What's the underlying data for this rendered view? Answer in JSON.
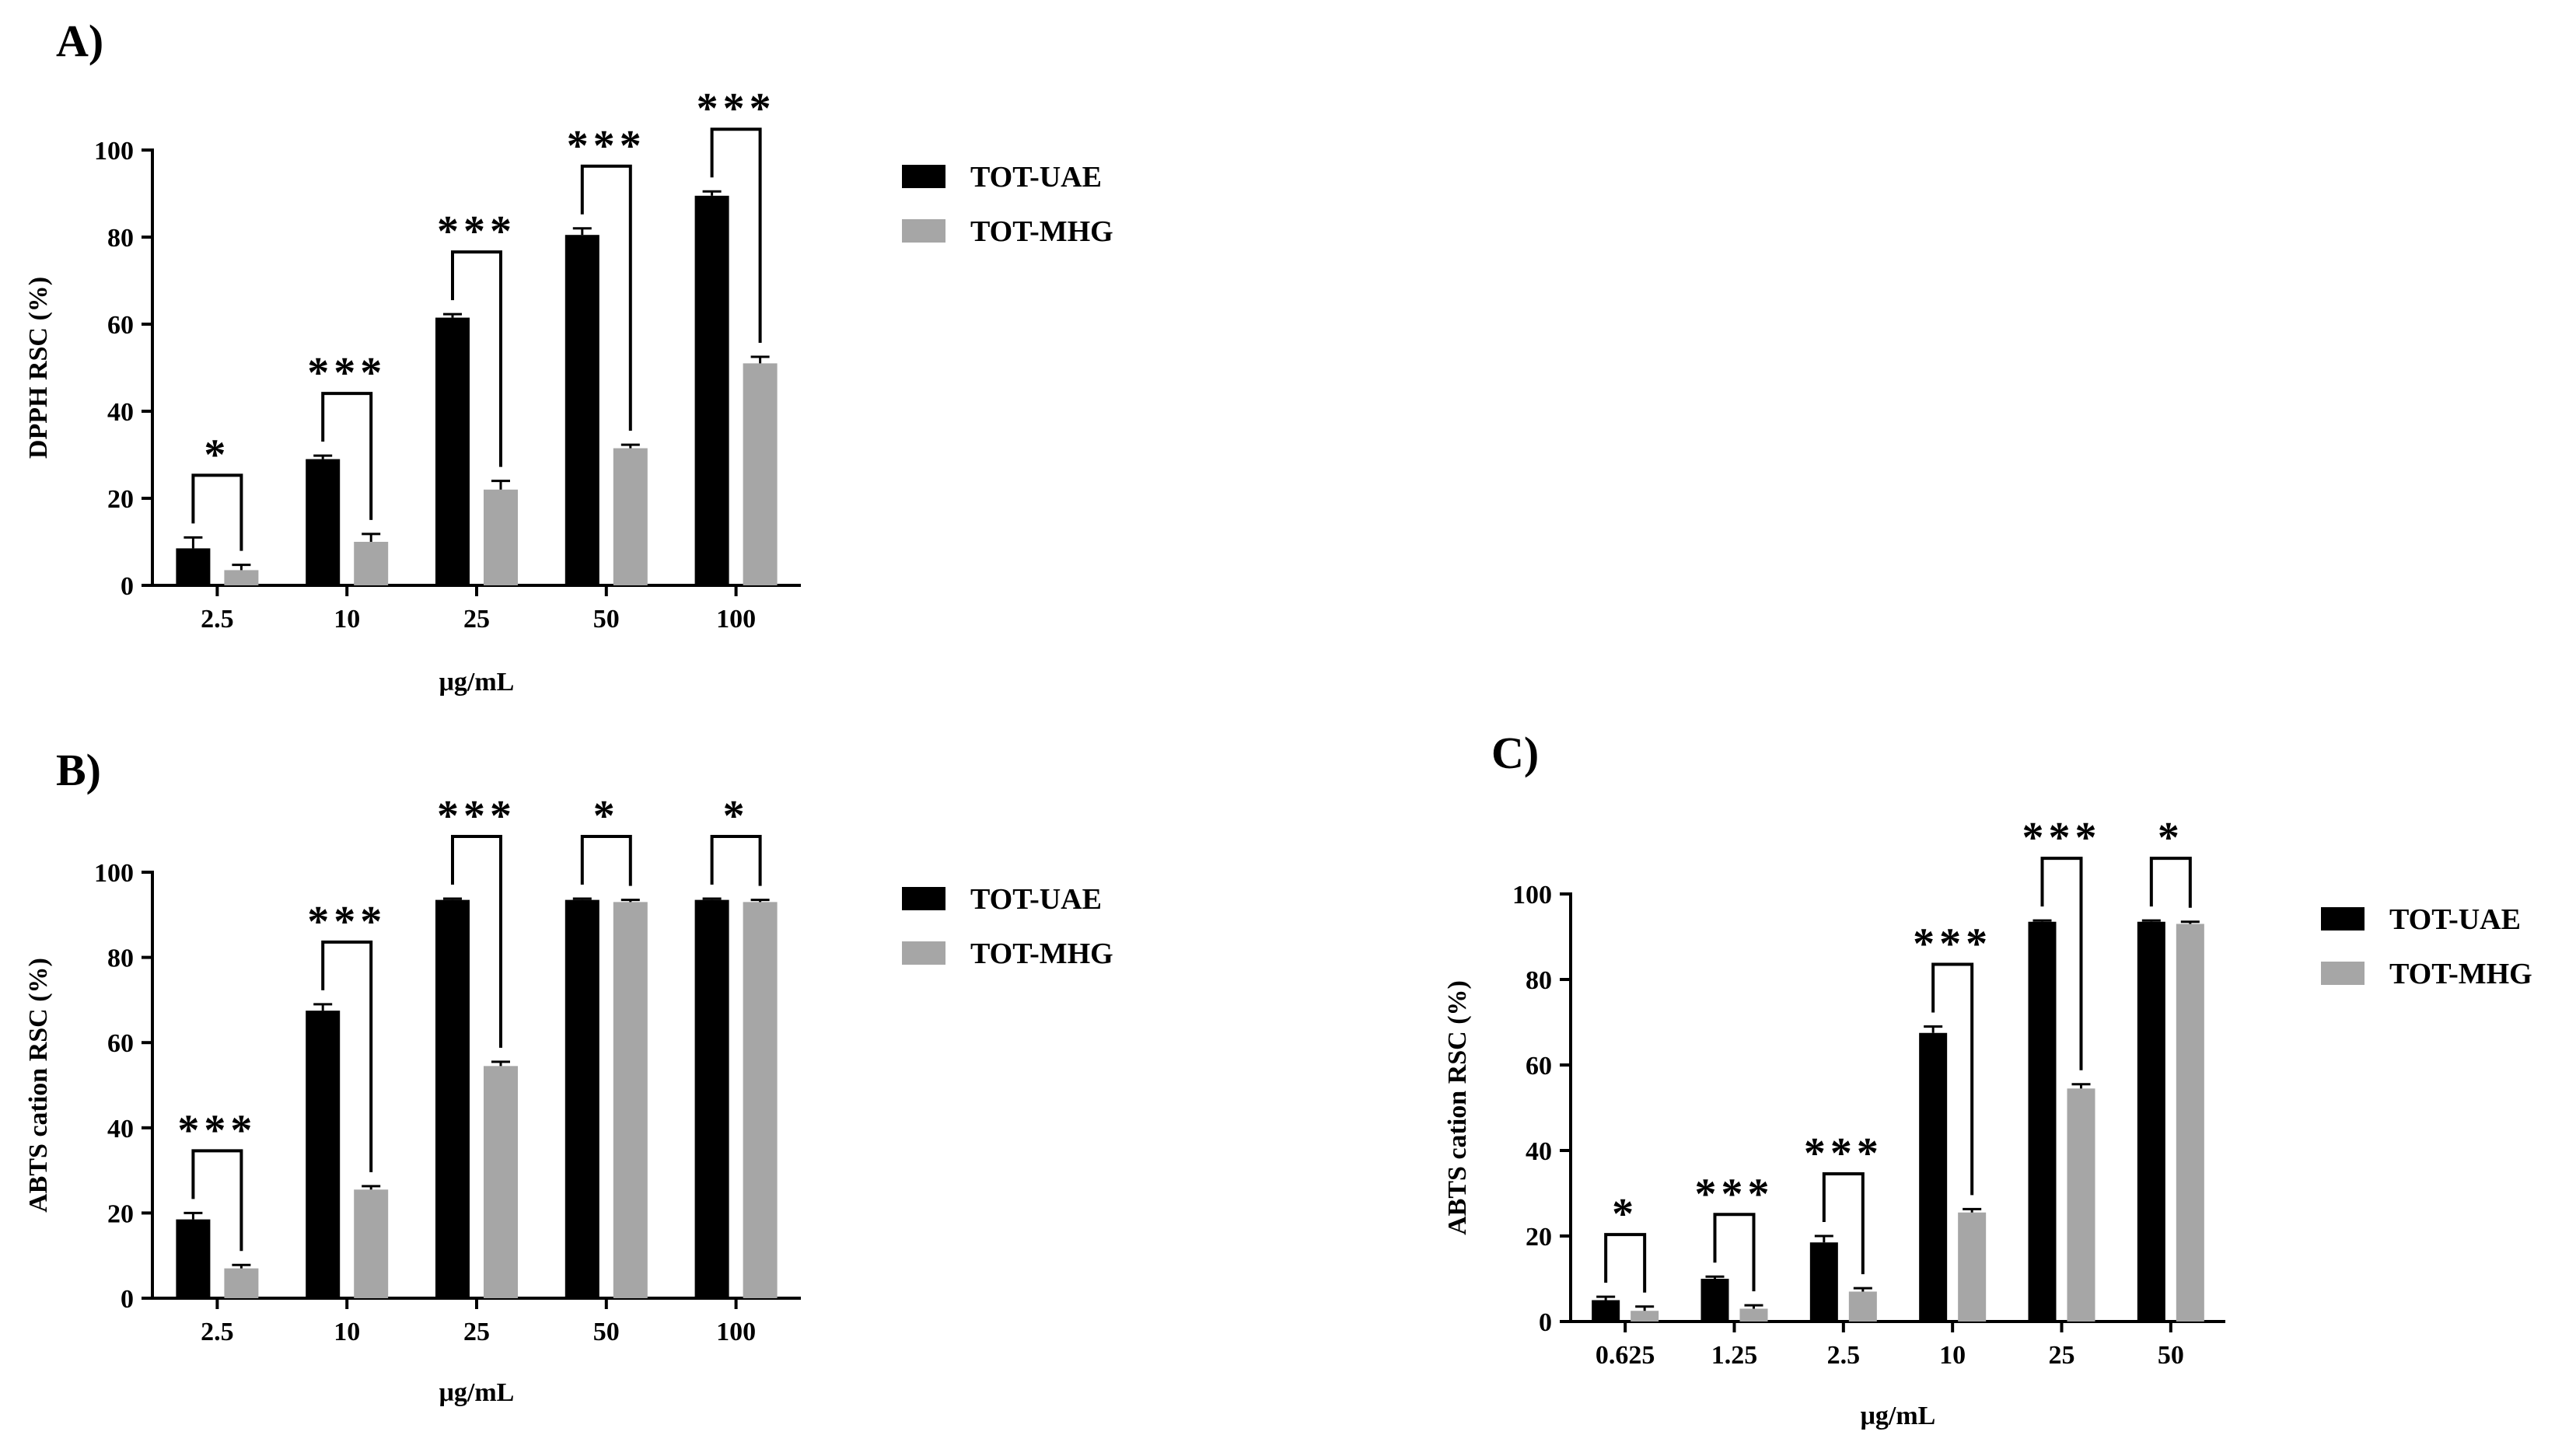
{
  "colors": {
    "series1": "#000000",
    "series2": "#a6a6a6",
    "axis": "#000000"
  },
  "chart_data": [
    {
      "panel_label": "A)",
      "type": "bar",
      "xlabel": "μg/mL",
      "ylabel": "DPPH RSC (%)",
      "ylim": [
        0,
        100
      ],
      "yticks": [
        "0",
        "20",
        "40",
        "60",
        "80",
        "100"
      ],
      "categories": [
        "2.5",
        "10",
        "25",
        "50",
        "100"
      ],
      "series": [
        {
          "name": "TOT-UAE",
          "values": [
            8.5,
            29,
            61.5,
            80.5,
            89.5
          ],
          "errors": [
            2.5,
            0.8,
            0.8,
            1.5,
            1.0
          ]
        },
        {
          "name": "TOT-MHG",
          "values": [
            3.5,
            10,
            22,
            31.5,
            51
          ],
          "errors": [
            1.2,
            1.8,
            2.0,
            0.8,
            1.5
          ]
        }
      ],
      "significance": [
        "*",
        "***",
        "***",
        "***",
        "***"
      ],
      "legend": "right"
    },
    {
      "panel_label": "B)",
      "type": "bar",
      "xlabel": "μg/mL",
      "ylabel": "ABTS cation RSC (%)",
      "ylim": [
        0,
        100
      ],
      "yticks": [
        "0",
        "20",
        "40",
        "60",
        "80",
        "100"
      ],
      "categories": [
        "2.5",
        "10",
        "25",
        "50",
        "100"
      ],
      "series": [
        {
          "name": "TOT-UAE",
          "values": [
            18.5,
            67.5,
            93.5,
            93.5,
            93.5
          ],
          "errors": [
            1.5,
            1.5,
            0.3,
            0.3,
            0.3
          ]
        },
        {
          "name": "TOT-MHG",
          "values": [
            7,
            25.5,
            54.5,
            93,
            93
          ],
          "errors": [
            0.8,
            0.8,
            1.0,
            0.5,
            0.5
          ]
        }
      ],
      "significance": [
        "***",
        "***",
        "***",
        "*",
        "*"
      ],
      "legend": "right"
    },
    {
      "panel_label": "C)",
      "type": "bar",
      "xlabel": "μg/mL",
      "ylabel": "ABTS cation RSC (%)",
      "ylim": [
        0,
        100
      ],
      "yticks": [
        "0",
        "20",
        "40",
        "60",
        "80",
        "100"
      ],
      "categories": [
        "0.625",
        "1.25",
        "2.5",
        "10",
        "25",
        "50"
      ],
      "series": [
        {
          "name": "TOT-UAE",
          "values": [
            5,
            10,
            18.5,
            67.5,
            93.5,
            93.5
          ],
          "errors": [
            0.8,
            0.5,
            1.5,
            1.5,
            0.3,
            0.3
          ]
        },
        {
          "name": "TOT-MHG",
          "values": [
            2.5,
            3,
            7,
            25.5,
            54.5,
            93
          ],
          "errors": [
            1.0,
            0.8,
            0.8,
            0.8,
            1.0,
            0.5
          ]
        }
      ],
      "significance": [
        "*",
        "***",
        "***",
        "***",
        "***",
        "*"
      ],
      "legend": "right"
    }
  ]
}
